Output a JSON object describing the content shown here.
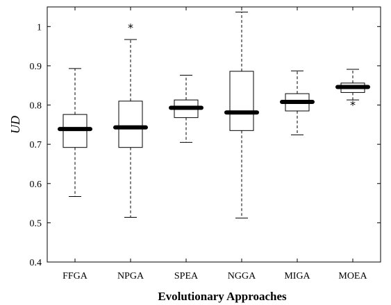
{
  "chart_data": {
    "type": "boxplot",
    "xlabel": "Evolutionary Approaches",
    "ylabel": "UD",
    "ylim": [
      0.4,
      1.05
    ],
    "yticks": [
      0.4,
      0.5,
      0.6,
      0.7,
      0.8,
      0.9,
      1.0
    ],
    "ytick_labels": [
      "0.4",
      "0.5",
      "0.6",
      "0.7",
      "0.8",
      "0.9",
      "1"
    ],
    "grid": false,
    "categories": [
      "FFGA",
      "NPGA",
      "SPEA",
      "NGGA",
      "MIGA",
      "MOEA"
    ],
    "boxes": [
      {
        "category": "FFGA",
        "whisker_low": 0.567,
        "q1": 0.692,
        "median": 0.739,
        "q3": 0.776,
        "whisker_high": 0.893,
        "outliers": []
      },
      {
        "category": "NPGA",
        "whisker_low": 0.514,
        "q1": 0.692,
        "median": 0.743,
        "q3": 0.81,
        "whisker_high": 0.967,
        "outliers": [
          1.0
        ]
      },
      {
        "category": "SPEA",
        "whisker_low": 0.705,
        "q1": 0.768,
        "median": 0.793,
        "q3": 0.813,
        "whisker_high": 0.876,
        "outliers": []
      },
      {
        "category": "NGGA",
        "whisker_low": 0.512,
        "q1": 0.735,
        "median": 0.781,
        "q3": 0.886,
        "whisker_high": 1.037,
        "outliers": []
      },
      {
        "category": "MIGA",
        "whisker_low": 0.724,
        "q1": 0.785,
        "median": 0.808,
        "q3": 0.829,
        "whisker_high": 0.887,
        "outliers": []
      },
      {
        "category": "MOEA",
        "whisker_low": 0.813,
        "q1": 0.832,
        "median": 0.846,
        "q3": 0.856,
        "whisker_high": 0.891,
        "outliers": [
          0.803
        ]
      }
    ],
    "colors": {
      "box": "#000000",
      "median": "#000000",
      "whisker": "#000000",
      "background": "#ffffff"
    }
  }
}
